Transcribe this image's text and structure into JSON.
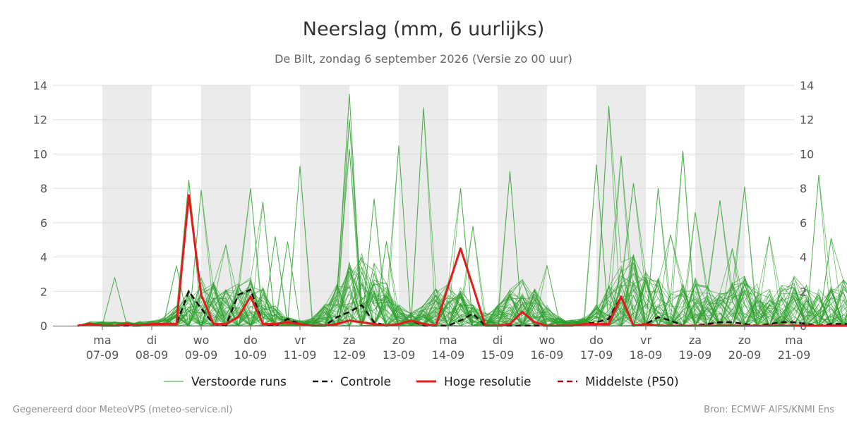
{
  "chart_data": {
    "type": "line",
    "title": "Neerslag (mm, 6 uurlijks)",
    "subtitle": "De Bilt, zondag  6 september 2026 (Versie zo 00 uur)",
    "credit_left": "Gegenereerd door MeteoVPS (meteo-service.nl)",
    "credit_right": "Bron: ECMWF AIFS/KNMI Ens",
    "x_start": "2026-09-06 00:00",
    "x_end": "2026-09-21 00:00",
    "x_step_hours": 6,
    "ylim": [
      0,
      14
    ],
    "y_ticks": [
      0,
      2,
      4,
      6,
      8,
      10,
      12,
      14
    ],
    "grid": true,
    "legend_position": "bottom",
    "day_ticks": [
      {
        "day": "ma",
        "date": "07-09"
      },
      {
        "day": "di",
        "date": "08-09"
      },
      {
        "day": "wo",
        "date": "09-09"
      },
      {
        "day": "do",
        "date": "10-09"
      },
      {
        "day": "vr",
        "date": "11-09"
      },
      {
        "day": "za",
        "date": "12-09"
      },
      {
        "day": "zo",
        "date": "13-09"
      },
      {
        "day": "ma",
        "date": "14-09"
      },
      {
        "day": "di",
        "date": "15-09"
      },
      {
        "day": "wo",
        "date": "16-09"
      },
      {
        "day": "do",
        "date": "17-09"
      },
      {
        "day": "vr",
        "date": "18-09"
      },
      {
        "day": "za",
        "date": "19-09"
      },
      {
        "day": "zo",
        "date": "20-09"
      },
      {
        "day": "ma",
        "date": "21-09"
      }
    ],
    "shaded_days": [
      "07-09",
      "09-09",
      "11-09",
      "13-09",
      "15-09",
      "17-09",
      "19-09"
    ],
    "series": [
      {
        "name": "Controle",
        "color": "#111111",
        "style": "dashed",
        "values": [
          0,
          0.1,
          0,
          0,
          0,
          0,
          0.1,
          0.1,
          0.1,
          2,
          1,
          0.1,
          0,
          1.8,
          2.1,
          0.1,
          0,
          0.4,
          0.1,
          0,
          0,
          0.5,
          0.8,
          1.2,
          0.2,
          0,
          0.1,
          0.3,
          0,
          0,
          0,
          0.3,
          0.7,
          0,
          0,
          0,
          0,
          0,
          0,
          0,
          0,
          0.1,
          0.2,
          0.4,
          1.7,
          0,
          0.1,
          0.5,
          0.3,
          0,
          0,
          0.1,
          0.2,
          0.2,
          0.1,
          0,
          0.1,
          0.2,
          0.2,
          0.1,
          0,
          0.1,
          0.1,
          0.1,
          0,
          0,
          0,
          0,
          0,
          0,
          0
        ]
      },
      {
        "name": "Hoge resolutie",
        "color": "#e41a1c",
        "style": "solid",
        "values": [
          0,
          0.1,
          0,
          0,
          0.1,
          0,
          0.1,
          0.1,
          0.1,
          7.6,
          1.8,
          0.1,
          0.1,
          0.5,
          1.7,
          0.1,
          0.1,
          0.2,
          0.1,
          0,
          0,
          0.1,
          0.3,
          0.2,
          0.1,
          0,
          0.1,
          0.3,
          0.1,
          0,
          2.3,
          4.5,
          2.3,
          0,
          0,
          0.1,
          0.8,
          0.2,
          0,
          0,
          0,
          0.1,
          0.1,
          0.1,
          1.7,
          0,
          0.1,
          0,
          0,
          0,
          0,
          0,
          0,
          0,
          0,
          0,
          0,
          0,
          0,
          0,
          0,
          0,
          0,
          0,
          0,
          0,
          0,
          0,
          0,
          0,
          0
        ]
      },
      {
        "name": "Middelste (P50)",
        "color": "#a01010",
        "style": "dashed",
        "values": [
          0,
          0.1,
          0,
          0,
          0,
          0,
          0.1,
          0.1,
          0.1,
          2,
          1,
          0.1,
          0,
          1.8,
          2.1,
          0.1,
          0,
          0.4,
          0.1,
          0,
          0,
          0.5,
          0.8,
          1.2,
          0.2,
          0,
          0.1,
          0.3,
          0,
          0,
          0,
          0.3,
          0.7,
          0,
          0,
          0,
          0,
          0,
          0,
          0,
          0,
          0.1,
          0.2,
          0.4,
          1.7,
          0,
          0.1,
          0.5,
          0.3,
          0,
          0,
          0.1,
          0.2,
          0.2,
          0.1,
          0,
          0.1,
          0.2,
          0.2,
          0.1,
          0,
          0.1,
          0.1,
          0.1,
          0,
          0,
          0,
          0,
          0,
          0,
          0
        ]
      }
    ],
    "ensemble": {
      "name": "Verstoorde runs",
      "color": "#2ca02c",
      "members": 50,
      "seed": 20260906,
      "peaks": [
        [
          0.0833,
          2.8
        ],
        [
          0.1625,
          3.5
        ],
        [
          0.1875,
          8.5
        ],
        [
          0.2042,
          7.9
        ],
        [
          0.2333,
          4.7
        ],
        [
          0.2708,
          8.0
        ],
        [
          0.2875,
          7.2
        ],
        [
          0.3042,
          5.2
        ],
        [
          0.3208,
          4.9
        ],
        [
          0.3375,
          9.3
        ],
        [
          0.3917,
          10.3
        ],
        [
          0.4042,
          12.0
        ],
        [
          0.4083,
          13.5
        ],
        [
          0.425,
          7.4
        ],
        [
          0.4458,
          4.9
        ],
        [
          0.4708,
          10.5
        ],
        [
          0.5,
          12.7
        ],
        [
          0.5417,
          8.0
        ],
        [
          0.5667,
          5.8
        ],
        [
          0.6125,
          9.0
        ],
        [
          0.6708,
          3.5
        ],
        [
          0.7292,
          9.4
        ],
        [
          0.7542,
          12.8
        ],
        [
          0.7708,
          9.9
        ],
        [
          0.7875,
          8.3
        ],
        [
          0.8125,
          8.0
        ],
        [
          0.8292,
          5.3
        ],
        [
          0.85,
          10.2
        ],
        [
          0.8708,
          6.6
        ],
        [
          0.8917,
          7.3
        ],
        [
          0.9167,
          4.5
        ],
        [
          0.9292,
          8.1
        ],
        [
          0.9625,
          5.2
        ],
        [
          1.025,
          8.8
        ],
        [
          1.0583,
          5.1
        ],
        [
          1.0917,
          8.0
        ]
      ]
    }
  }
}
